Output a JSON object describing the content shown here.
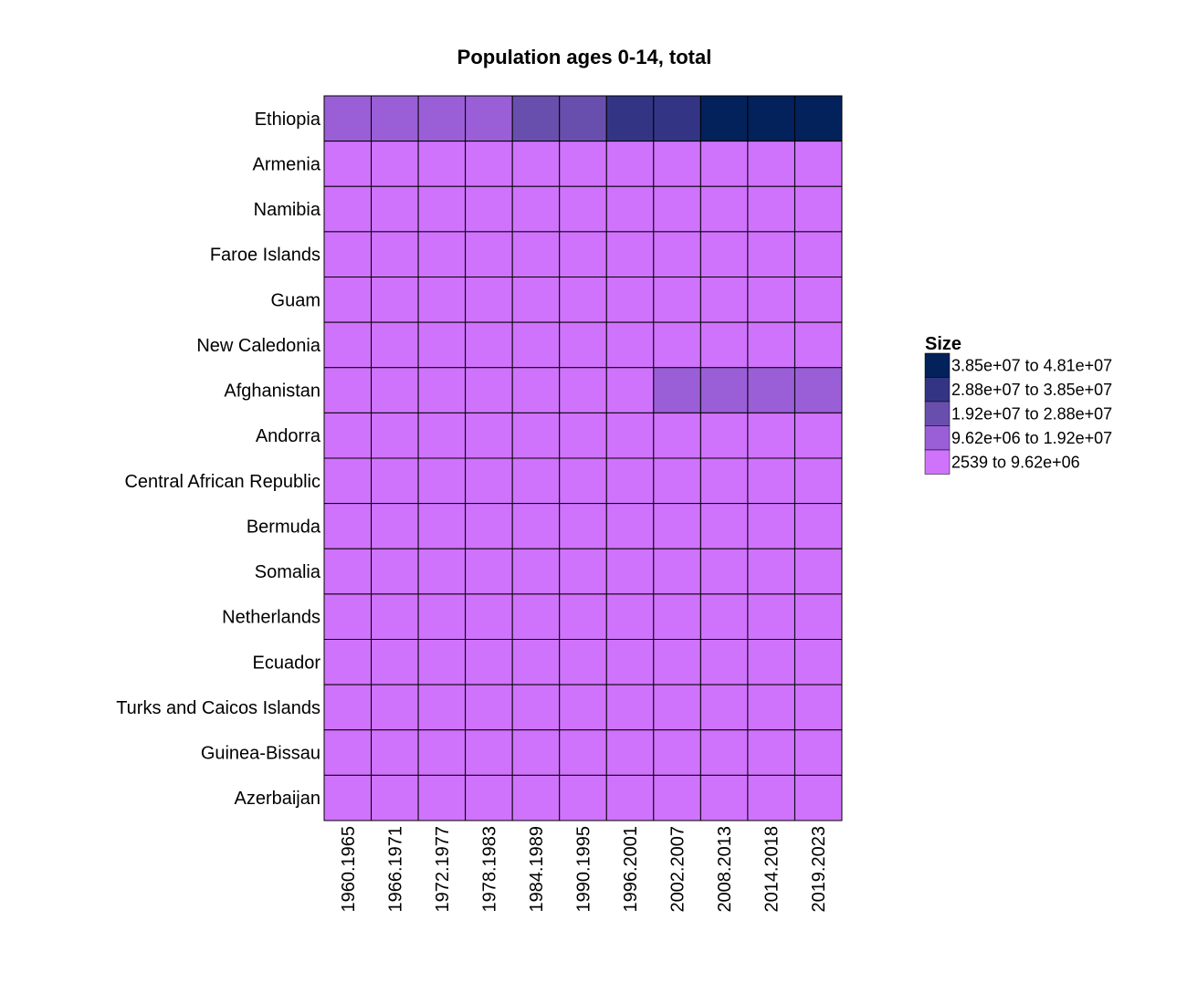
{
  "chart_data": {
    "type": "heatmap",
    "title": "Population ages 0-14, total",
    "xlabel": "",
    "ylabel": "",
    "x_categories": [
      "1960.1965",
      "1966.1971",
      "1972.1977",
      "1978.1983",
      "1984.1989",
      "1990.1995",
      "1996.2001",
      "2002.2007",
      "2008.2013",
      "2014.2018",
      "2019.2023"
    ],
    "y_categories": [
      "Ethiopia",
      "Armenia",
      "Namibia",
      "Faroe Islands",
      "Guam",
      "New Caledonia",
      "Afghanistan",
      "Andorra",
      "Central African Republic",
      "Bermuda",
      "Somalia",
      "Netherlands",
      "Ecuador",
      "Turks and Caicos Islands",
      "Guinea-Bissau",
      "Azerbaijan"
    ],
    "bins": [
      {
        "label": "3.85e+07 to 4.81e+07",
        "color": "#03215b"
      },
      {
        "label": "2.88e+07 to 3.85e+07",
        "color": "#333584"
      },
      {
        "label": "1.92e+07 to 2.88e+07",
        "color": "#694fad"
      },
      {
        "label": "9.62e+06 to 1.92e+07",
        "color": "#9a5fd7"
      },
      {
        "label": "2539 to 9.62e+06",
        "color": "#cf73fc"
      }
    ],
    "cell_bins": [
      [
        3,
        3,
        3,
        3,
        2,
        2,
        1,
        1,
        0,
        0,
        0
      ],
      [
        4,
        4,
        4,
        4,
        4,
        4,
        4,
        4,
        4,
        4,
        4
      ],
      [
        4,
        4,
        4,
        4,
        4,
        4,
        4,
        4,
        4,
        4,
        4
      ],
      [
        4,
        4,
        4,
        4,
        4,
        4,
        4,
        4,
        4,
        4,
        4
      ],
      [
        4,
        4,
        4,
        4,
        4,
        4,
        4,
        4,
        4,
        4,
        4
      ],
      [
        4,
        4,
        4,
        4,
        4,
        4,
        4,
        4,
        4,
        4,
        4
      ],
      [
        4,
        4,
        4,
        4,
        4,
        4,
        4,
        3,
        3,
        3,
        3
      ],
      [
        4,
        4,
        4,
        4,
        4,
        4,
        4,
        4,
        4,
        4,
        4
      ],
      [
        4,
        4,
        4,
        4,
        4,
        4,
        4,
        4,
        4,
        4,
        4
      ],
      [
        4,
        4,
        4,
        4,
        4,
        4,
        4,
        4,
        4,
        4,
        4
      ],
      [
        4,
        4,
        4,
        4,
        4,
        4,
        4,
        4,
        4,
        4,
        4
      ],
      [
        4,
        4,
        4,
        4,
        4,
        4,
        4,
        4,
        4,
        4,
        4
      ],
      [
        4,
        4,
        4,
        4,
        4,
        4,
        4,
        4,
        4,
        4,
        4
      ],
      [
        4,
        4,
        4,
        4,
        4,
        4,
        4,
        4,
        4,
        4,
        4
      ],
      [
        4,
        4,
        4,
        4,
        4,
        4,
        4,
        4,
        4,
        4,
        4
      ],
      [
        4,
        4,
        4,
        4,
        4,
        4,
        4,
        4,
        4,
        4,
        4
      ]
    ],
    "legend": {
      "title": "Size",
      "position": "right"
    },
    "grid": false
  }
}
